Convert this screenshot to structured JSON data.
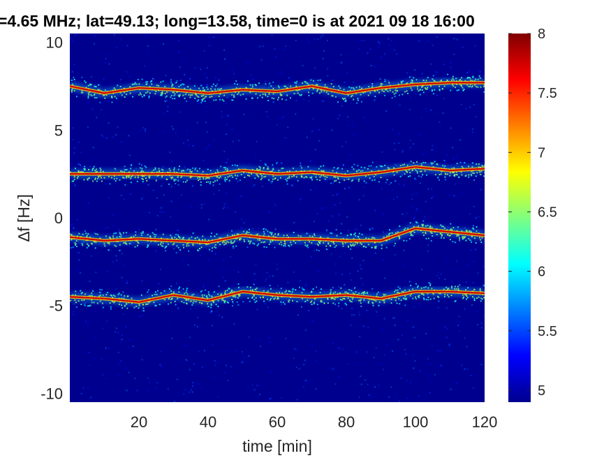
{
  "chart_data": {
    "type": "heatmap",
    "title": "=4.65 MHz;  lat=49.13; long=13.58, time=0 is at 2021 09 18 16:00",
    "xlabel": "time [min]",
    "ylabel": "∆f [Hz]",
    "xlim": [
      0,
      120
    ],
    "ylim": [
      -10.5,
      10.5
    ],
    "xticks": [
      20,
      40,
      60,
      80,
      100,
      120
    ],
    "yticks": [
      10,
      5,
      0,
      -5,
      -10
    ],
    "colorbar": {
      "min": 4.9,
      "max": 8,
      "ticks": [
        8,
        7.5,
        7,
        6.5,
        6,
        5.5,
        5
      ],
      "colormap": "jet"
    },
    "background_level": 5.0,
    "grid": false,
    "series": [
      {
        "x": [
          0,
          10,
          20,
          30,
          40,
          50,
          60,
          70,
          80,
          90,
          100,
          110,
          120
        ],
        "y": [
          7.5,
          7.1,
          7.4,
          7.3,
          7.1,
          7.3,
          7.2,
          7.5,
          7.1,
          7.4,
          7.6,
          7.7,
          7.7
        ]
      },
      {
        "x": [
          0,
          10,
          20,
          30,
          40,
          50,
          60,
          70,
          80,
          90,
          100,
          110,
          120
        ],
        "y": [
          2.5,
          2.5,
          2.5,
          2.5,
          2.4,
          2.7,
          2.5,
          2.6,
          2.4,
          2.6,
          2.9,
          2.7,
          2.8
        ]
      },
      {
        "x": [
          0,
          10,
          20,
          30,
          40,
          50,
          60,
          70,
          80,
          90,
          100,
          110,
          120
        ],
        "y": [
          -1.1,
          -1.3,
          -1.2,
          -1.3,
          -1.4,
          -1.0,
          -1.2,
          -1.2,
          -1.3,
          -1.3,
          -0.6,
          -0.8,
          -1.0
        ]
      },
      {
        "x": [
          0,
          10,
          20,
          30,
          40,
          50,
          60,
          70,
          80,
          90,
          100,
          110,
          120
        ],
        "y": [
          -4.5,
          -4.6,
          -4.8,
          -4.4,
          -4.7,
          -4.2,
          -4.4,
          -4.5,
          -4.4,
          -4.6,
          -4.2,
          -4.2,
          -4.3
        ]
      }
    ]
  }
}
